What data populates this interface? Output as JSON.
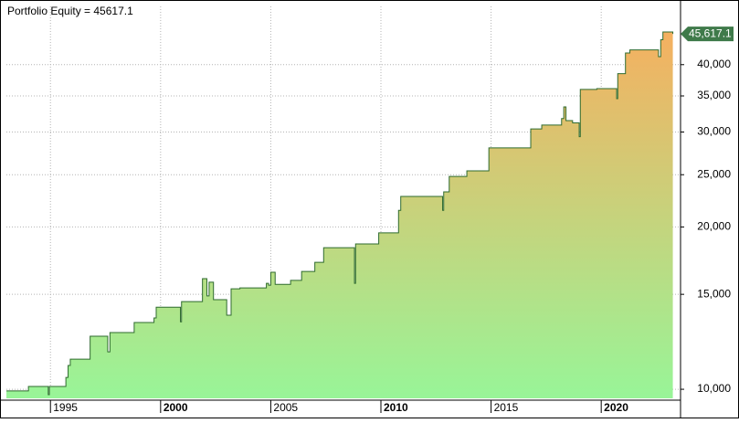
{
  "chart_data": {
    "type": "line",
    "title": "Portfolio Equity = 45617.1",
    "line_shape": "step",
    "log_y": true,
    "grid": true,
    "color": "#2f6b2f",
    "fill_top_color": "#f5b060",
    "fill_bottom_color": "#98f598",
    "series": [
      {
        "name": "Portfolio Equity",
        "x": [
          1993.0,
          1994.0,
          1994.9,
          1994.95,
          1995.7,
          1995.8,
          1995.9,
          1996.8,
          1997.6,
          1997.7,
          1998.8,
          1999.7,
          1999.8,
          2000.9,
          2000.95,
          2001.9,
          2002.1,
          2002.2,
          2002.4,
          2003.0,
          2003.2,
          2003.6,
          2004.8,
          2004.9,
          2005.0,
          2005.2,
          2005.9,
          2006.4,
          2007.0,
          2007.4,
          2008.8,
          2008.85,
          2009.9,
          2010.8,
          2010.9,
          2012.8,
          2012.85,
          2013.1,
          2013.9,
          2014.9,
          2016.8,
          2017.3,
          2018.2,
          2018.3,
          2018.4,
          2018.7,
          2019.0,
          2019.05,
          2019.8,
          2020.7,
          2020.75,
          2021.1,
          2021.3,
          2022.6,
          2022.7,
          2022.8,
          2023.25
        ],
        "values": [
          9930,
          10120,
          9770,
          10120,
          10520,
          11070,
          11370,
          12540,
          11730,
          12740,
          13300,
          13560,
          14200,
          13340,
          14540,
          16040,
          14900,
          15800,
          14660,
          13720,
          15360,
          15420,
          15720,
          15600,
          16480,
          15650,
          15920,
          16540,
          17200,
          18300,
          15720,
          18600,
          19500,
          21470,
          22790,
          21470,
          23230,
          24820,
          25420,
          28030,
          30400,
          30900,
          31780,
          33400,
          31500,
          31200,
          29400,
          35980,
          36100,
          34600,
          38500,
          42040,
          42600,
          41400,
          44500,
          45990,
          45617.1
        ]
      }
    ],
    "annotation": {
      "value": 45617.1,
      "label": "45,617.1"
    },
    "xlim": [
      1993.0,
      2023.6
    ],
    "xticks": [
      1995,
      2000,
      2005,
      2010,
      2015,
      2020
    ],
    "bold_xticks": [
      2000,
      2010,
      2020
    ],
    "ylim": [
      9620,
      51300
    ],
    "yticks": [
      {
        "value": 10000,
        "label": "10,000"
      },
      {
        "value": 15000,
        "label": "15,000"
      },
      {
        "value": 20000,
        "label": "20,000"
      },
      {
        "value": 25000,
        "label": "25,000"
      },
      {
        "value": 30000,
        "label": "30,000"
      },
      {
        "value": 35000,
        "label": "35,000"
      },
      {
        "value": 40000,
        "label": "40,000"
      }
    ]
  }
}
